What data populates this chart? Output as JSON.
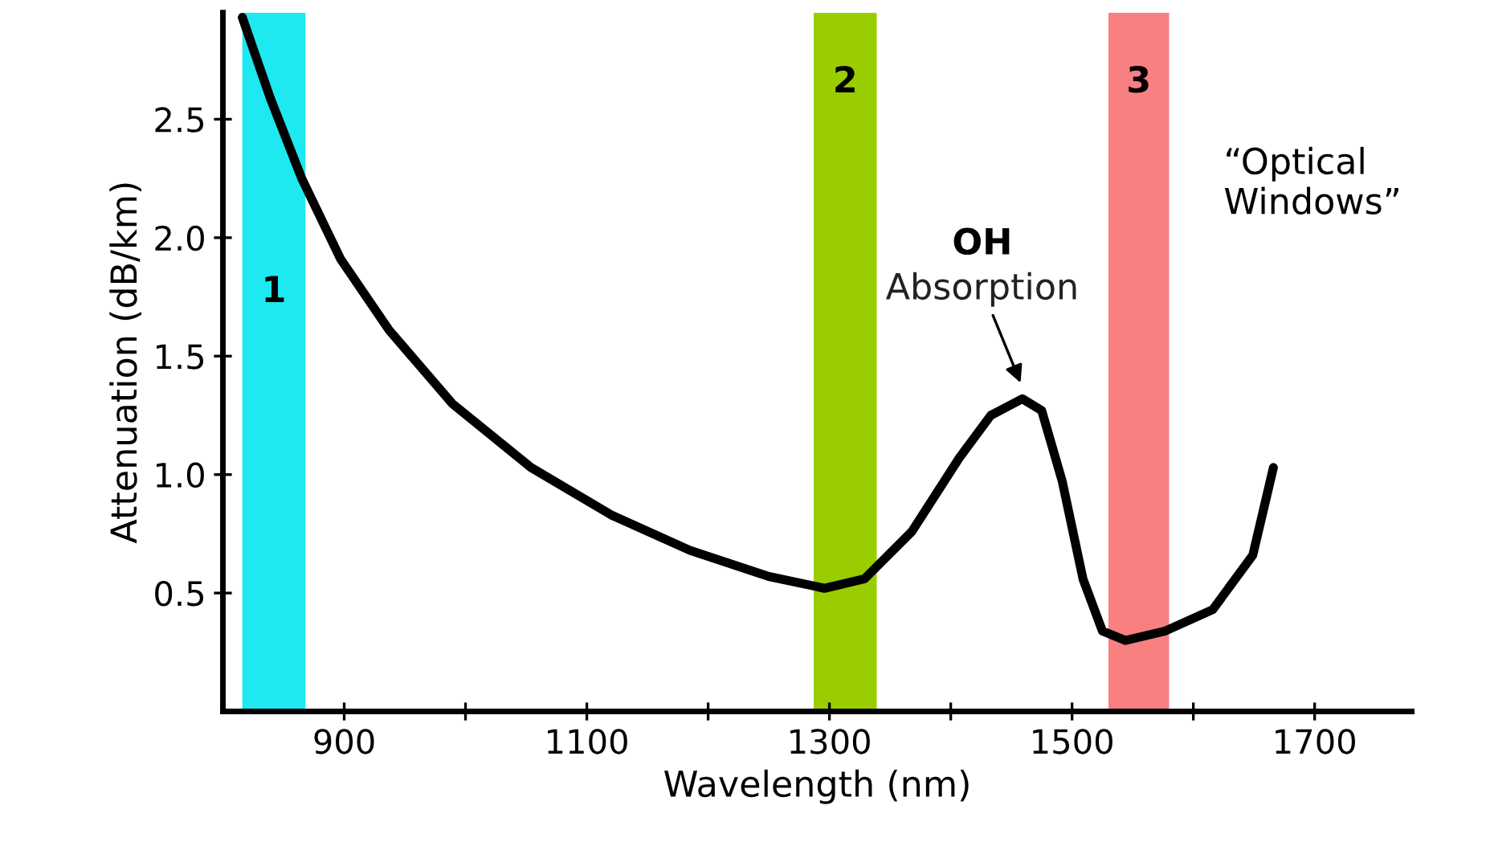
{
  "chart_data": {
    "type": "line",
    "xlabel": "Wavelength (nm)",
    "ylabel": "Attenuation (dB/km)",
    "x": [
      816,
      839,
      865,
      897,
      937,
      989,
      1054,
      1120,
      1185,
      1250,
      1296,
      1329,
      1368,
      1407,
      1433,
      1459,
      1475,
      1492,
      1509,
      1525,
      1544,
      1577,
      1616,
      1649,
      1666
    ],
    "series": [
      {
        "color": "#000000",
        "values": [
          2.93,
          2.59,
          2.25,
          1.91,
          1.61,
          1.3,
          1.03,
          0.83,
          0.68,
          0.57,
          0.52,
          0.56,
          0.76,
          1.07,
          1.25,
          1.32,
          1.27,
          0.97,
          0.56,
          0.34,
          0.3,
          0.34,
          0.43,
          0.66,
          1.03
        ]
      }
    ],
    "xlim": [
      800,
      1780
    ],
    "ylim": [
      0,
      2.95
    ],
    "xticks": [
      900,
      {
        "value": 1000,
        "label": null
      },
      1100,
      {
        "value": 1200,
        "label": null
      },
      1300,
      {
        "value": 1400,
        "label": null
      },
      1500,
      {
        "value": 1600,
        "label": null
      },
      1700
    ],
    "yticks": [
      0.5,
      {
        "value": 1.0,
        "label": "1.0"
      },
      1.5,
      {
        "value": 2.0,
        "label": "2.0"
      },
      2.5
    ],
    "bands": [
      {
        "axis": "x",
        "from": 816,
        "to": 868,
        "label": "1",
        "color": "#1ee8f0"
      },
      {
        "axis": "x",
        "from": 1287,
        "to": 1339,
        "label": "2",
        "color": "#9acd00"
      },
      {
        "axis": "x",
        "from": 1530,
        "to": 1580,
        "label": "3",
        "color": "#f98080"
      }
    ],
    "annotations": [
      "OH",
      {
        "text": "Absorption",
        "x": 1459,
        "y": 1.32
      },
      "“Optical\nWindows”"
    ],
    "grid": false,
    "marker": "none",
    "line_style": "solid"
  }
}
